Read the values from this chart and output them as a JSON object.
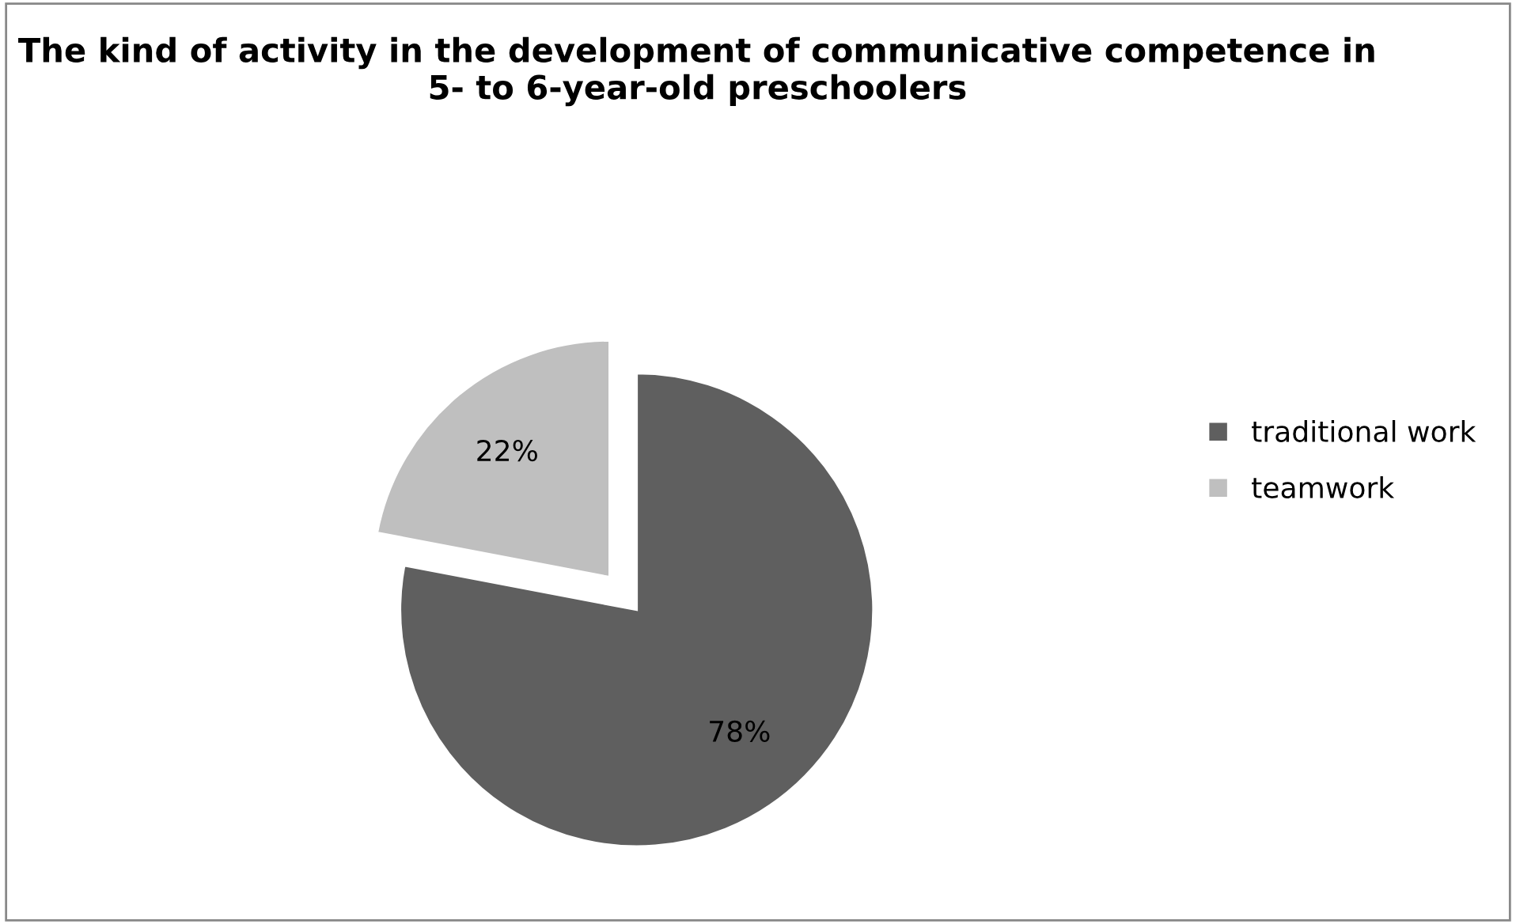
{
  "chart_data": {
    "type": "pie",
    "title": "The kind of activity in the development of communicative competence in 5- to 6-year-old preschoolers",
    "categories": [
      "traditional work",
      "teamwork"
    ],
    "values": [
      78,
      22
    ],
    "colors": [
      "#5f5f5f",
      "#bfbfbf"
    ],
    "value_labels": [
      "78%",
      "22%"
    ],
    "legend": "right"
  }
}
